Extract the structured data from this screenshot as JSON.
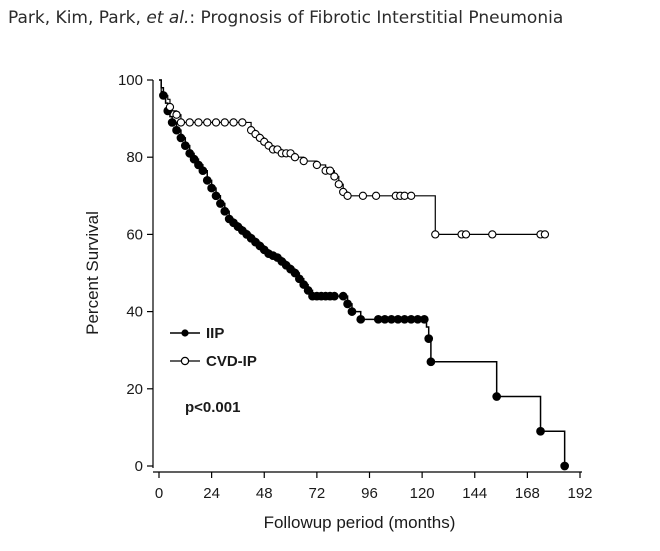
{
  "header": {
    "authors": "Park, Kim, Park, ",
    "etal": "et al.",
    "title_rest": ": Prognosis of Fibrotic Interstitial Pneumonia"
  },
  "chart_data": {
    "type": "line",
    "subtype": "kaplan-meier step",
    "title": "",
    "xlabel": "Followup period (months)",
    "ylabel": "Percent Survival",
    "xlim": [
      0,
      192
    ],
    "ylim": [
      0,
      100
    ],
    "xticks": [
      0,
      24,
      48,
      72,
      96,
      120,
      144,
      168,
      192
    ],
    "yticks": [
      0,
      20,
      40,
      60,
      80,
      100
    ],
    "grid": false,
    "legend_position": "lower-left",
    "annotation": "p<0.001",
    "series": [
      {
        "name": "IIP",
        "marker": "filled-circle",
        "color": "#000000",
        "steps": [
          [
            0,
            100
          ],
          [
            1,
            98
          ],
          [
            2,
            96
          ],
          [
            3,
            94
          ],
          [
            4,
            92
          ],
          [
            5,
            90.5
          ],
          [
            6,
            89
          ],
          [
            8,
            87
          ],
          [
            10,
            85
          ],
          [
            12,
            83
          ],
          [
            14,
            81
          ],
          [
            16,
            79.5
          ],
          [
            18,
            78
          ],
          [
            20,
            76.5
          ],
          [
            22,
            74
          ],
          [
            24,
            72
          ],
          [
            26,
            70
          ],
          [
            28,
            68
          ],
          [
            30,
            66
          ],
          [
            32,
            64
          ],
          [
            34,
            63
          ],
          [
            36,
            62
          ],
          [
            38,
            61
          ],
          [
            40,
            60
          ],
          [
            42,
            59
          ],
          [
            44,
            58
          ],
          [
            46,
            57
          ],
          [
            48,
            56
          ],
          [
            50,
            55
          ],
          [
            52,
            54.5
          ],
          [
            54,
            54
          ],
          [
            56,
            53
          ],
          [
            58,
            52
          ],
          [
            60,
            51
          ],
          [
            62,
            50
          ],
          [
            64,
            48.5
          ],
          [
            66,
            47
          ],
          [
            68,
            45.5
          ],
          [
            70,
            44
          ],
          [
            72,
            44
          ],
          [
            82,
            44
          ],
          [
            86,
            42
          ],
          [
            88,
            40
          ],
          [
            92,
            38
          ],
          [
            100,
            38
          ],
          [
            120,
            38
          ],
          [
            122,
            36
          ],
          [
            123,
            33
          ],
          [
            124,
            27
          ],
          [
            154,
            18
          ],
          [
            174,
            9
          ],
          [
            185,
            0
          ]
        ],
        "markers_x": [
          2,
          4,
          6,
          8,
          10,
          12,
          14,
          16,
          18,
          20,
          22,
          24,
          26,
          28,
          30,
          32,
          34,
          36,
          38,
          40,
          42,
          44,
          46,
          48,
          50,
          52,
          54,
          56,
          58,
          60,
          62,
          64,
          66,
          68,
          70,
          72,
          74,
          76,
          78,
          80,
          84,
          86,
          88,
          92,
          100,
          103,
          106,
          109,
          112,
          115,
          118,
          121,
          123,
          124,
          154,
          174,
          185
        ]
      },
      {
        "name": "CVD-IP",
        "marker": "open-circle",
        "color": "#000000",
        "steps": [
          [
            0,
            100
          ],
          [
            1,
            97
          ],
          [
            2,
            96
          ],
          [
            4,
            95
          ],
          [
            5,
            93
          ],
          [
            6,
            92
          ],
          [
            8,
            91
          ],
          [
            10,
            89
          ],
          [
            12,
            89
          ],
          [
            40,
            89
          ],
          [
            42,
            87
          ],
          [
            44,
            86
          ],
          [
            46,
            85
          ],
          [
            48,
            84
          ],
          [
            50,
            83
          ],
          [
            52,
            82
          ],
          [
            56,
            81
          ],
          [
            62,
            80
          ],
          [
            66,
            79
          ],
          [
            72,
            78
          ],
          [
            76,
            76.5
          ],
          [
            80,
            75
          ],
          [
            82,
            73
          ],
          [
            84,
            71
          ],
          [
            86,
            70
          ],
          [
            112,
            70
          ],
          [
            124,
            70
          ],
          [
            126,
            60
          ],
          [
            176,
            60
          ]
        ],
        "markers_x": [
          5,
          8,
          10,
          14,
          18,
          22,
          26,
          30,
          34,
          38,
          42,
          44,
          46,
          48,
          50,
          52,
          54,
          56,
          58,
          60,
          62,
          66,
          72,
          76,
          78,
          80,
          82,
          84,
          86,
          93,
          99,
          108,
          110,
          112,
          115,
          126,
          138,
          140,
          152,
          174,
          176
        ]
      }
    ]
  }
}
